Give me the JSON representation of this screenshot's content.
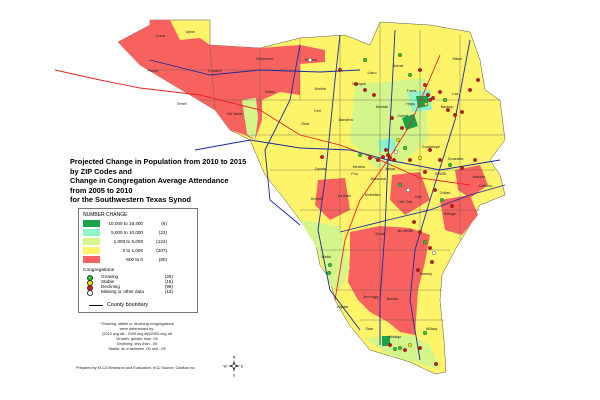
{
  "title": {
    "lines": [
      "Projected Change in Population from 2010 to 2015",
      "by ZIP Codes and",
      "Change in Congregation Average Attendance",
      "from 2005 to 2010",
      "for the Southwestern Texas Synod"
    ]
  },
  "legend": {
    "heading": "NUMBER CHANGE",
    "classes": [
      {
        "range": "10,000  to  16,400",
        "count": "(6)",
        "color": "#1aa34a"
      },
      {
        "range": "5,000  to  10,000",
        "count": "(22)",
        "color": "#8ff5c8"
      },
      {
        "range": "1,000  to   5,000",
        "count": "(124)",
        "color": "#d4f58a"
      },
      {
        "range": "0  to   1,000",
        "count": "(207)",
        "color": "#fdf46a"
      },
      {
        "range": "-600  to        0",
        "count": "(80)",
        "color": "#f8625e"
      }
    ],
    "congregations_heading": "Congregations",
    "congregations": [
      {
        "label": "Growing",
        "count": "(26)",
        "color": "#22cc22"
      },
      {
        "label": "Stable",
        "count": "(15)",
        "color": "#f5e400"
      },
      {
        "label": "Declining",
        "count": "(96)",
        "color": "#dd1111"
      },
      {
        "label": "Missing or other data",
        "count": "(13)",
        "color": "#ffffff"
      }
    ],
    "county_boundary": "County boundary"
  },
  "footnote": [
    "*Growing, stable or declining congregations",
    "were determined by:",
    "(2010 avg att - 2005 avg att)/2005 avg att",
    "Growth:  greater than .05",
    "Declining:  less than -.05",
    "Stable:  at or between .05 and -.05"
  ],
  "prepared_by": "Prepared by ELCA Research and Evaluation, 9/12 Source: Claritas Inc.",
  "compass": {
    "n": "N",
    "s": "S",
    "e": "E",
    "w": "W"
  },
  "counties": [
    "Crane",
    "Upton",
    "Pecos",
    "Crockett",
    "Schleicher",
    "Menard",
    "Terrell",
    "Sutton",
    "Kimble",
    "Val Verde",
    "Real",
    "Kerr",
    "Bandera",
    "Kendall",
    "Gillespie",
    "Llano",
    "Burnet",
    "Milam",
    "Travis",
    "Hays",
    "Bastrop",
    "Lee",
    "Comal",
    "Guadalupe",
    "Bexar",
    "Medina",
    "Atascosa",
    "Zavala",
    "Frio",
    "Dimmit",
    "La Salle",
    "McMullen",
    "Live Oak",
    "Duval",
    "Jim Wells",
    "Webb",
    "Jim Hogg",
    "Brooks",
    "Kenedy",
    "Zapata",
    "Starr",
    "Hidalgo",
    "Willacy",
    "Goliad",
    "Bee",
    "Refugio",
    "Calhoun",
    "Jackson",
    "DeWitt",
    "Gonzales"
  ],
  "highways": [
    "I-10 W",
    "US Hwy 190",
    "US Hwy 277",
    "US Hwy 83",
    "US Hwy 59",
    "US Hwy 77",
    "I-35",
    "US Hwy 281",
    "I-10 E"
  ]
}
